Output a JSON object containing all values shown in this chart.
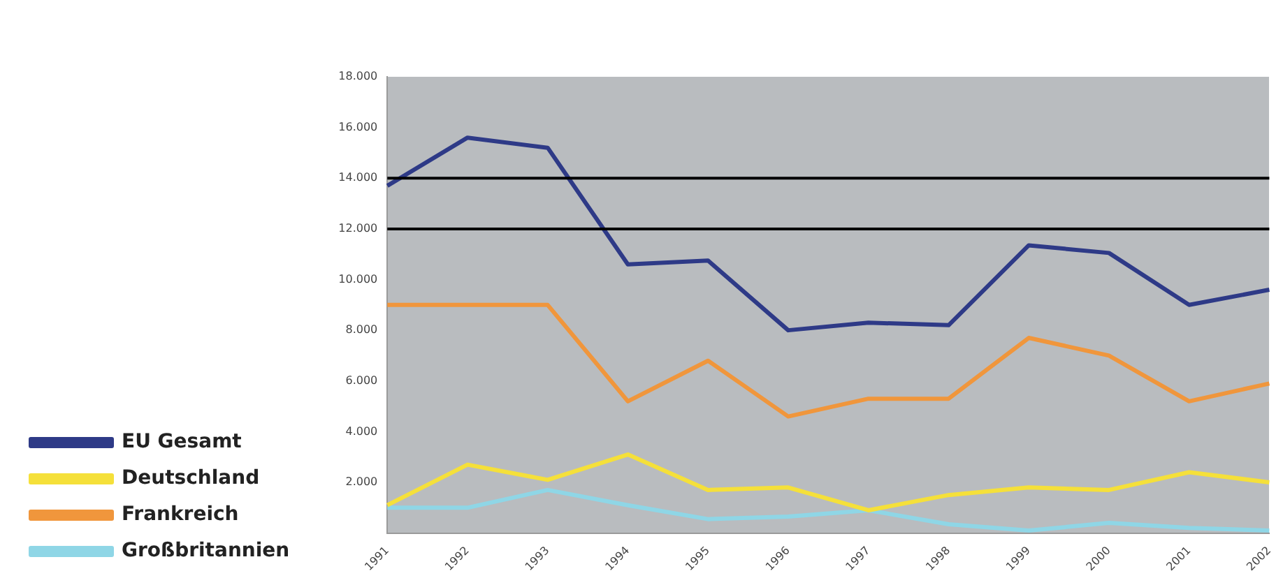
{
  "chart_data": {
    "type": "line",
    "categories": [
      "1991",
      "1992",
      "1993",
      "1994",
      "1995",
      "1996",
      "1997",
      "1998",
      "1999",
      "2000",
      "2001",
      "2002"
    ],
    "series": [
      {
        "name": "EU Gesamt",
        "color": "#2e3a87",
        "values": [
          13700,
          15600,
          15200,
          10600,
          10750,
          8000,
          8300,
          8200,
          11350,
          11050,
          9000,
          9600
        ]
      },
      {
        "name": "Deutschland",
        "color": "#f5e03a",
        "values": [
          1100,
          2700,
          2100,
          3100,
          1700,
          1800,
          900,
          1500,
          1800,
          1700,
          2400,
          2000
        ]
      },
      {
        "name": "Frankreich",
        "color": "#f0963c",
        "values": [
          9000,
          9000,
          9000,
          5200,
          6800,
          4600,
          5300,
          5300,
          7700,
          7000,
          5200,
          5900
        ]
      },
      {
        "name": "Großbritannien",
        "color": "#8fd6e6",
        "values": [
          1000,
          1000,
          1700,
          1100,
          550,
          650,
          900,
          350,
          100,
          400,
          200,
          100
        ]
      }
    ],
    "ylim": [
      0,
      18000
    ],
    "yticks": [
      {
        "value": 2000,
        "label": "2.000"
      },
      {
        "value": 4000,
        "label": "4.000"
      },
      {
        "value": 6000,
        "label": "6.000"
      },
      {
        "value": 8000,
        "label": "8.000"
      },
      {
        "value": 10000,
        "label": "10.000"
      },
      {
        "value": 12000,
        "label": "12.000"
      },
      {
        "value": 14000,
        "label": "14.000"
      },
      {
        "value": 16000,
        "label": "16.000"
      },
      {
        "value": 18000,
        "label": "18.000"
      }
    ],
    "ref_lines": [
      {
        "axis": "y",
        "value": 14000,
        "color": "#000000"
      },
      {
        "axis": "y",
        "value": 12000,
        "color": "#000000"
      }
    ],
    "legend": "left",
    "grid": false,
    "marker": "none"
  }
}
